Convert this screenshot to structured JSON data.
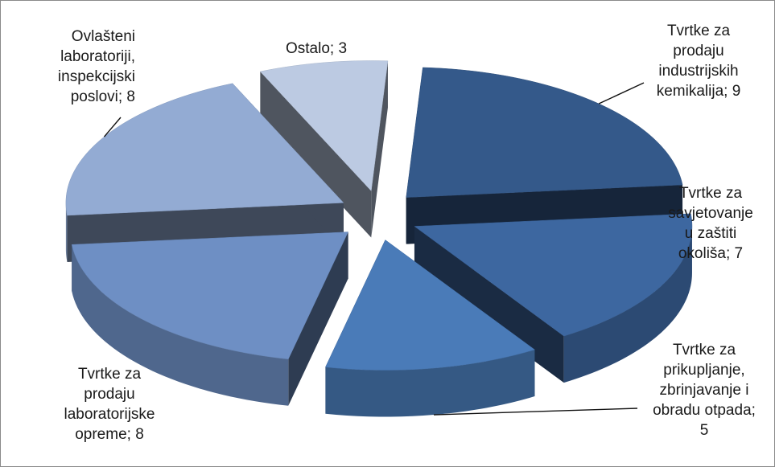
{
  "chart_data": {
    "type": "pie",
    "style": "3d-exploded",
    "title": "",
    "legend": "none",
    "slices": [
      {
        "label": "Tvrtke za prodaju industrijskih kemikalija",
        "value": 9,
        "display": "Tvrtke za\nprodaju\nindustrijskih\nkemikalija; 9",
        "color": "#34598a"
      },
      {
        "label": "Tvrtke za savjetovanje u zaštiti okoliša",
        "value": 7,
        "display": "Tvrtke za\nsavjetovanje\nu zaštiti\nokoliša; 7",
        "color": "#3d67a0"
      },
      {
        "label": "Tvrtke za prikupljanje, zbrinjavanje i obradu otpada",
        "value": 5,
        "display": "Tvrtke za\nprikupljanje,\nzbrinjavanje i\nobradu otpada;\n5",
        "color": "#4a7bb8"
      },
      {
        "label": "Tvrtke za prodaju laboratorijske opreme",
        "value": 8,
        "display": "Tvrtke za\nprodaju\nlaboratorijske\nopreme; 8",
        "color": "#6e8fc4"
      },
      {
        "label": "Ovlašteni laboratoriji, inspekcijski poslovi",
        "value": 8,
        "display": "Ovlašteni\nlaboratoriji,\ninspekcijski\nposlovi; 8",
        "color": "#93abd3"
      },
      {
        "label": "Ostalo",
        "value": 3,
        "display": "Ostalo; 3",
        "color": "#bccae2"
      }
    ]
  }
}
